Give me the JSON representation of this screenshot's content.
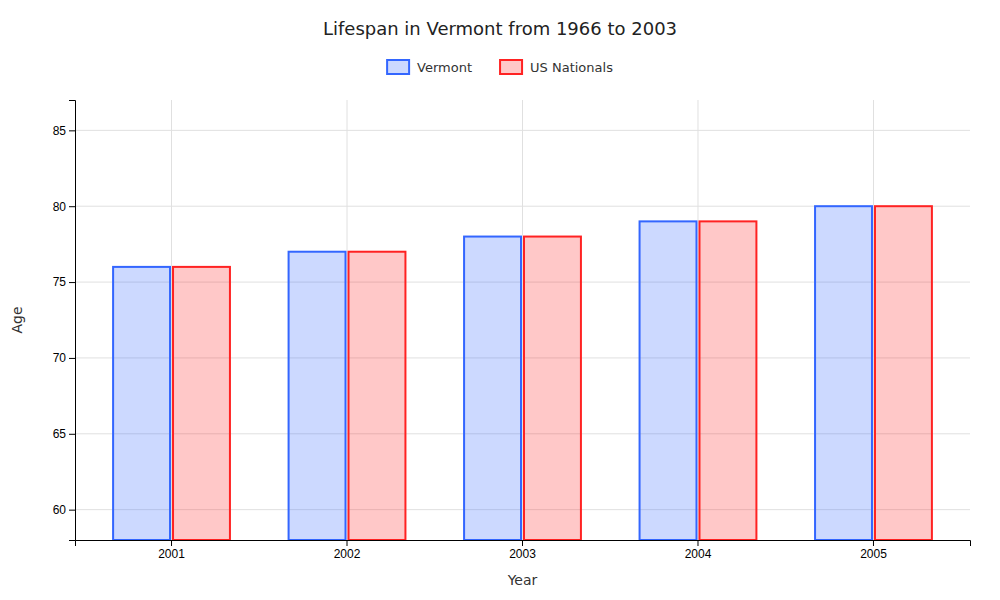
{
  "chart_data": {
    "type": "bar",
    "title": "Lifespan in Vermont from 1966 to 2003",
    "xlabel": "Year",
    "ylabel": "Age",
    "categories": [
      "2001",
      "2002",
      "2003",
      "2004",
      "2005"
    ],
    "series": [
      {
        "name": "Vermont",
        "color": "#3366ff",
        "values": [
          76,
          77,
          78,
          79,
          80
        ]
      },
      {
        "name": "US Nationals",
        "color": "#ff2222",
        "values": [
          76,
          77,
          78,
          79,
          80
        ]
      }
    ],
    "ylim": [
      58,
      87
    ],
    "yticks": [
      60,
      65,
      70,
      75,
      80,
      85
    ],
    "grid": true,
    "legend": "top"
  }
}
